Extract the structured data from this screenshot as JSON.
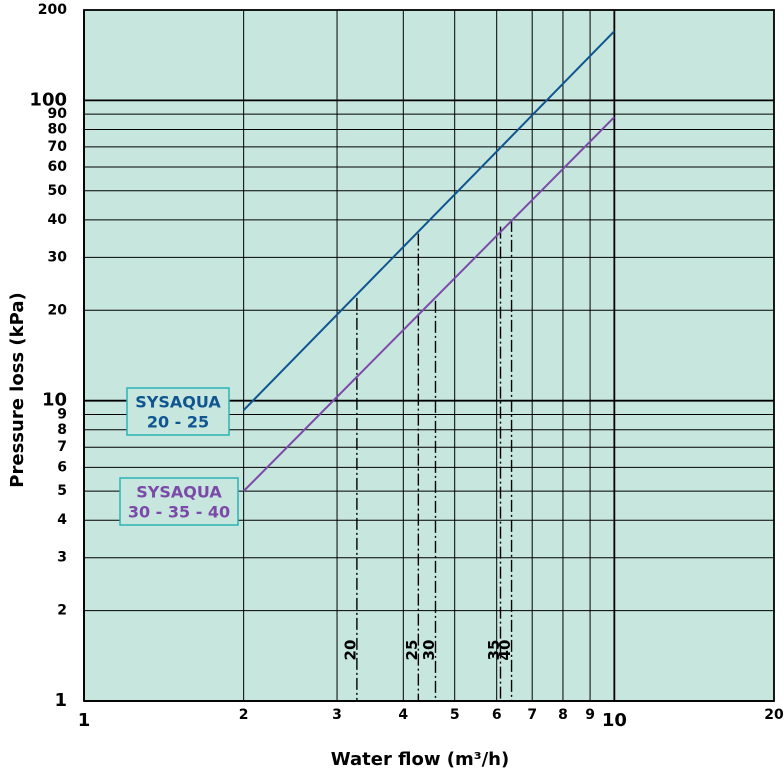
{
  "chart_data": {
    "type": "line",
    "title": "",
    "xlabel": "Water flow  (m³/h)",
    "ylabel": "Pressure loss  (kPa)",
    "xscale": "log",
    "yscale": "log",
    "xlim": [
      1,
      20
    ],
    "ylim": [
      1,
      200
    ],
    "grid": true,
    "x_ticks": [
      {
        "value": 1,
        "label": "1",
        "major": true
      },
      {
        "value": 2,
        "label": "2",
        "major": false
      },
      {
        "value": 3,
        "label": "3",
        "major": false
      },
      {
        "value": 4,
        "label": "4",
        "major": false
      },
      {
        "value": 5,
        "label": "5",
        "major": false
      },
      {
        "value": 6,
        "label": "6",
        "major": false
      },
      {
        "value": 7,
        "label": "7",
        "major": false
      },
      {
        "value": 8,
        "label": "8",
        "major": false
      },
      {
        "value": 9,
        "label": "9",
        "major": false
      },
      {
        "value": 10,
        "label": "10",
        "major": true
      },
      {
        "value": 20,
        "label": "20",
        "major": false
      }
    ],
    "y_ticks": [
      {
        "value": 1,
        "label": "1",
        "major": true
      },
      {
        "value": 2,
        "label": "2",
        "major": false
      },
      {
        "value": 3,
        "label": "3",
        "major": false
      },
      {
        "value": 4,
        "label": "4",
        "major": false
      },
      {
        "value": 5,
        "label": "5",
        "major": false
      },
      {
        "value": 6,
        "label": "6",
        "major": false
      },
      {
        "value": 7,
        "label": "7",
        "major": false
      },
      {
        "value": 8,
        "label": "8",
        "major": false
      },
      {
        "value": 9,
        "label": "9",
        "major": false
      },
      {
        "value": 10,
        "label": "10",
        "major": true
      },
      {
        "value": 20,
        "label": "20",
        "major": false
      },
      {
        "value": 30,
        "label": "30",
        "major": false
      },
      {
        "value": 40,
        "label": "40",
        "major": false
      },
      {
        "value": 50,
        "label": "50",
        "major": false
      },
      {
        "value": 60,
        "label": "60",
        "major": false
      },
      {
        "value": 70,
        "label": "70",
        "major": false
      },
      {
        "value": 80,
        "label": "80",
        "major": false
      },
      {
        "value": 90,
        "label": "90",
        "major": false
      },
      {
        "value": 100,
        "label": "100",
        "major": true
      },
      {
        "value": 200,
        "label": "200",
        "major": false
      }
    ],
    "series": [
      {
        "name": "SYSAQUA 20 - 25",
        "label_lines": [
          "SYSAQUA",
          "20 - 25"
        ],
        "color": "#0f5590",
        "x": [
          2,
          10
        ],
        "y": [
          9.3,
          170
        ]
      },
      {
        "name": "SYSAQUA 30 - 35 - 40",
        "label_lines": [
          "SYSAQUA",
          "30 - 35 - 40"
        ],
        "color": "#7b4aa8",
        "x": [
          2,
          10
        ],
        "y": [
          5,
          88
        ]
      }
    ],
    "annotations": [
      {
        "label": "20",
        "x": 3.27,
        "y": 22
      },
      {
        "label": "25",
        "x": 4.27,
        "y": 36
      },
      {
        "label": "30",
        "x": 4.6,
        "y": 21.5
      },
      {
        "label": "35",
        "x": 6.1,
        "y": 38
      },
      {
        "label": "40",
        "x": 6.4,
        "y": 40
      }
    ],
    "colors": {
      "plot_background": "#c7e6de",
      "grid": "#000000",
      "callout_background": "#c7e6de",
      "callout_border": "#2bb3b3"
    }
  }
}
